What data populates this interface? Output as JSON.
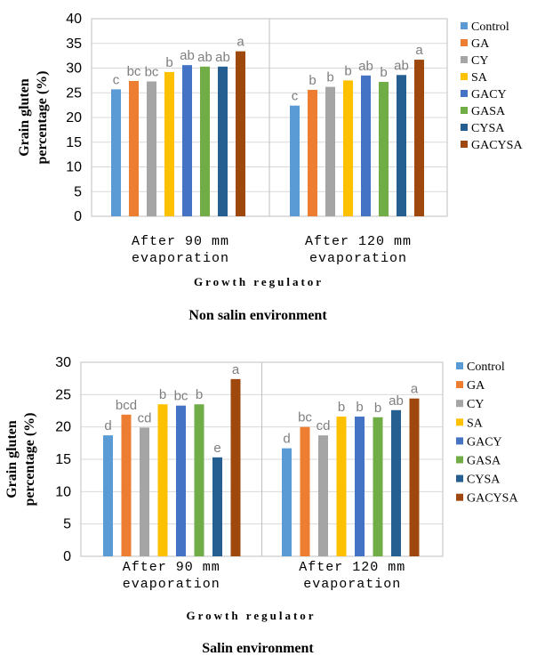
{
  "chart_data": [
    {
      "type": "bar",
      "ylabel": "Grain gluten percentage (%)",
      "xlabel": "Growth regulator",
      "caption": "Non salin environment",
      "ylim": [
        0,
        40
      ],
      "yticks": [
        0,
        5,
        10,
        15,
        20,
        25,
        30,
        35,
        40
      ],
      "grid": true,
      "legend_position": "right",
      "categories": [
        "After 90 mm evaporation",
        "After 120 mm evaporation"
      ],
      "series": [
        {
          "name": "Control",
          "color": "#5b9bd5",
          "values": [
            25.7,
            22.4
          ],
          "labels": [
            "c",
            "c"
          ]
        },
        {
          "name": "GA",
          "color": "#ed7d31",
          "values": [
            27.4,
            25.6
          ],
          "labels": [
            "bc",
            "b"
          ]
        },
        {
          "name": "CY",
          "color": "#a5a5a5",
          "values": [
            27.3,
            26.2
          ],
          "labels": [
            "bc",
            "b"
          ]
        },
        {
          "name": "SA",
          "color": "#ffc000",
          "values": [
            29.2,
            27.5
          ],
          "labels": [
            "b",
            "b"
          ]
        },
        {
          "name": "GACY",
          "color": "#4472c4",
          "values": [
            30.6,
            28.5
          ],
          "labels": [
            "ab",
            "ab"
          ]
        },
        {
          "name": "GASA",
          "color": "#70ad47",
          "values": [
            30.3,
            27.2
          ],
          "labels": [
            "ab",
            "b"
          ]
        },
        {
          "name": "CYSA",
          "color": "#255e91",
          "values": [
            30.3,
            28.6
          ],
          "labels": [
            "ab",
            "ab"
          ]
        },
        {
          "name": "GACYSA",
          "color": "#9e480e",
          "values": [
            33.4,
            31.7
          ],
          "labels": [
            "a",
            "a"
          ]
        }
      ]
    },
    {
      "type": "bar",
      "ylabel": "Grain gluten percentage (%)",
      "xlabel": "Growth regulator",
      "caption": "Salin environment",
      "ylim": [
        0,
        30
      ],
      "yticks": [
        0,
        5,
        10,
        15,
        20,
        25,
        30
      ],
      "grid": true,
      "legend_position": "right",
      "categories": [
        "After 90 mm evaporation",
        "After 120 mm evaporation"
      ],
      "series": [
        {
          "name": "Control",
          "color": "#5b9bd5",
          "values": [
            18.7,
            16.7
          ],
          "labels": [
            "d",
            "d"
          ]
        },
        {
          "name": "GA",
          "color": "#ed7d31",
          "values": [
            21.9,
            20.0
          ],
          "labels": [
            "bcd",
            "bc"
          ]
        },
        {
          "name": "CY",
          "color": "#a5a5a5",
          "values": [
            19.9,
            18.7
          ],
          "labels": [
            "cd",
            "cd"
          ]
        },
        {
          "name": "SA",
          "color": "#ffc000",
          "values": [
            23.5,
            21.6
          ],
          "labels": [
            "b",
            "b"
          ]
        },
        {
          "name": "GACY",
          "color": "#4472c4",
          "values": [
            23.3,
            21.6
          ],
          "labels": [
            "bc",
            "b"
          ]
        },
        {
          "name": "GASA",
          "color": "#70ad47",
          "values": [
            23.5,
            21.5
          ],
          "labels": [
            "b",
            "b"
          ]
        },
        {
          "name": "CYSA",
          "color": "#255e91",
          "values": [
            15.3,
            22.6
          ],
          "labels": [
            "e",
            "ab"
          ]
        },
        {
          "name": "GACYSA",
          "color": "#9e480e",
          "values": [
            27.4,
            24.4
          ],
          "labels": [
            "a",
            "a"
          ]
        }
      ]
    }
  ]
}
